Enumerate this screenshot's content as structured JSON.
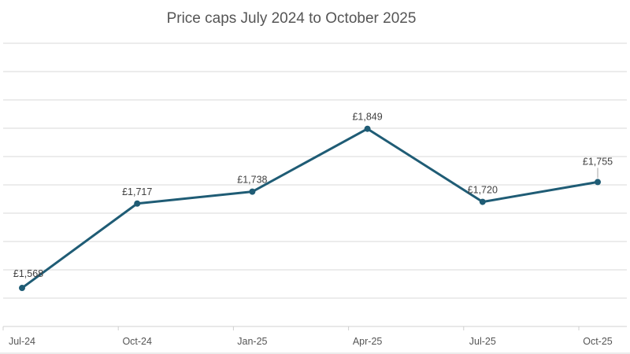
{
  "chart_data": {
    "type": "line",
    "title": "Price caps July 2024 to October 2025",
    "categories": [
      "Jul-24",
      "Oct-24",
      "Jan-25",
      "Apr-25",
      "Jul-25",
      "Oct-25"
    ],
    "values": [
      1568,
      1717,
      1738,
      1849,
      1720,
      1755
    ],
    "data_labels": [
      "£1,568",
      "£1,717",
      "£1,738",
      "£1,849",
      "£1,720",
      "£1,755"
    ],
    "xlabel": "",
    "ylabel": "",
    "ylim": [
      1500,
      2000
    ],
    "y_grid_step": 50,
    "grid": true,
    "series_color": "#1f5c75"
  }
}
